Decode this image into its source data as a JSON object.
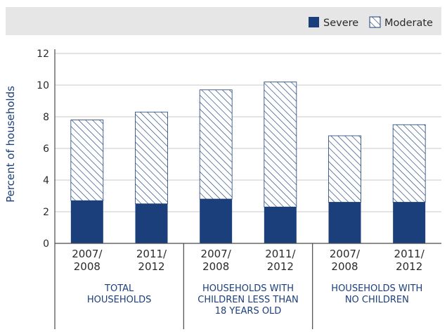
{
  "chart_data": {
    "type": "bar",
    "stacked": true,
    "ylabel": "Percent of households",
    "ylim": [
      0,
      12
    ],
    "yticks": [
      "0",
      "2",
      "4",
      "6",
      "8",
      "10",
      "12"
    ],
    "grid": true,
    "legend_position": "top-right",
    "categories": [
      [
        "2007/",
        "2008"
      ],
      [
        "2011/",
        "2012"
      ],
      [
        "2007/",
        "2008"
      ],
      [
        "2011/",
        "2012"
      ],
      [
        "2007/",
        "2008"
      ],
      [
        "2011/",
        "2012"
      ]
    ],
    "groups": [
      {
        "label": [
          "TOTAL",
          "HOUSEHOLDS"
        ],
        "start": 0,
        "end": 1
      },
      {
        "label": [
          "HOUSEHOLDS WITH",
          "CHILDREN LESS THAN",
          "18 YEARS OLD"
        ],
        "start": 2,
        "end": 3
      },
      {
        "label": [
          "HOUSEHOLDS WITH",
          "NO CHILDREN"
        ],
        "start": 4,
        "end": 5
      }
    ],
    "series": [
      {
        "name": "Severe",
        "color": "#1b3f7a",
        "pattern": "solid",
        "values": [
          2.7,
          2.5,
          2.8,
          2.3,
          2.6,
          2.6
        ]
      },
      {
        "name": "Moderate",
        "color": "#1b3f7a",
        "pattern": "hatched",
        "values": [
          5.1,
          5.8,
          6.9,
          7.9,
          4.2,
          4.9
        ]
      }
    ]
  }
}
